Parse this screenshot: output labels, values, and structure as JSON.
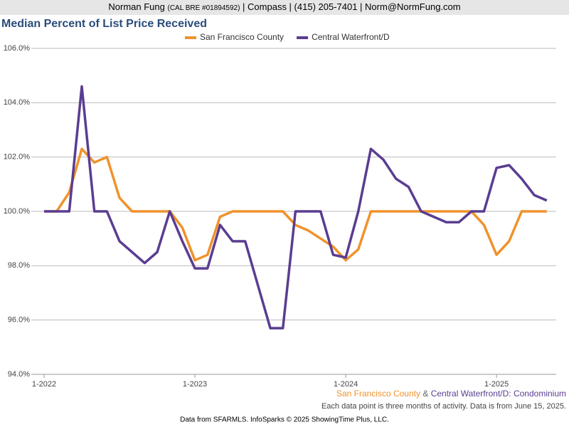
{
  "header": {
    "name": "Norman Fung",
    "license": "(CAL BRE #01894592)",
    "contact": "| Compass | (415) 205-7401 | Norm@NormFung.com"
  },
  "chart_data": {
    "type": "line",
    "title": "Median Percent of List Price Received",
    "categories": [
      "1-2022",
      null,
      null,
      null,
      null,
      null,
      null,
      null,
      null,
      null,
      null,
      null,
      "1-2023",
      null,
      null,
      null,
      null,
      null,
      null,
      null,
      null,
      null,
      null,
      null,
      "1-2024",
      null,
      null,
      null,
      null,
      null,
      null,
      null,
      null,
      null,
      null,
      null,
      "1-2025",
      null,
      null,
      null,
      null
    ],
    "series": [
      {
        "name": "San Francisco County",
        "color": "#f0922b",
        "values": [
          100,
          100,
          100.7,
          102.3,
          101.8,
          102.0,
          100.5,
          100,
          100,
          100,
          100,
          99.4,
          98.2,
          98.4,
          99.8,
          100,
          100,
          100,
          100,
          100,
          99.5,
          99.3,
          99.0,
          98.7,
          98.2,
          98.6,
          100,
          100,
          100,
          100,
          100,
          100,
          100,
          100,
          100,
          99.5,
          98.4,
          98.9,
          100,
          100,
          100
        ]
      },
      {
        "name": "Central Waterfront/D",
        "color": "#5a3d91",
        "values": [
          100,
          100,
          100,
          104.6,
          100,
          100,
          98.9,
          98.5,
          98.1,
          98.5,
          100,
          98.9,
          97.9,
          97.9,
          99.5,
          98.9,
          98.9,
          97.3,
          95.7,
          95.7,
          100,
          100,
          100,
          98.4,
          98.3,
          100,
          102.3,
          101.9,
          101.2,
          100.9,
          100,
          99.8,
          99.6,
          99.6,
          100,
          100,
          101.6,
          101.7,
          101.2,
          100.6,
          100.4
        ]
      }
    ],
    "ylim": [
      94,
      106
    ],
    "yticks": [
      {
        "value": 94,
        "label": "94.0%"
      },
      {
        "value": 96,
        "label": "96.0%"
      },
      {
        "value": 98,
        "label": "98.0%"
      },
      {
        "value": 100,
        "label": "100.0%"
      },
      {
        "value": 102,
        "label": "102.0%"
      },
      {
        "value": 104,
        "label": "104.0%"
      },
      {
        "value": 106,
        "label": "106.0%"
      }
    ],
    "grid": true,
    "caption": {
      "joiner": "&",
      "area": "Central Waterfront/D: Condominium"
    },
    "note": "Each data point is three months of activity. Data is from June 15, 2025.",
    "source": "Data from SFARMLS. InfoSparks © 2025 ShowingTime Plus, LLC."
  }
}
